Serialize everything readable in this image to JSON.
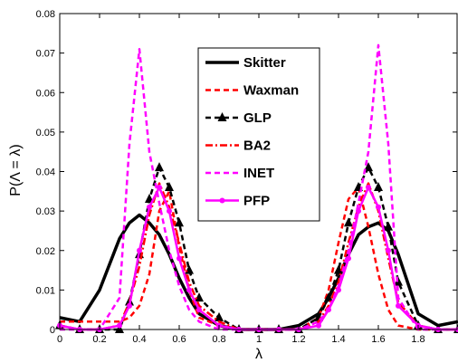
{
  "chart_data": {
    "type": "line",
    "xlabel": "λ",
    "ylabel": "P(Λ = λ)",
    "xlim": [
      0,
      2
    ],
    "ylim": [
      0,
      0.08
    ],
    "xticks": [
      "0",
      "0.2",
      "0.4",
      "0.6",
      "0.8",
      "1",
      "1.2",
      "1.4",
      "1.6",
      "1.8"
    ],
    "yticks": [
      "0",
      "0.01",
      "0.02",
      "0.03",
      "0.04",
      "0.05",
      "0.06",
      "0.07",
      "0.08"
    ],
    "legend_position": "top-center",
    "grid": false,
    "x": [
      0.0,
      0.1,
      0.2,
      0.3,
      0.35,
      0.4,
      0.45,
      0.5,
      0.55,
      0.6,
      0.65,
      0.7,
      0.8,
      0.9,
      1.0,
      1.1,
      1.2,
      1.3,
      1.35,
      1.4,
      1.45,
      1.5,
      1.55,
      1.6,
      1.65,
      1.7,
      1.8,
      1.9,
      2.0
    ],
    "series": [
      {
        "name": "Skitter",
        "color": "#000000",
        "style": "solid-thick",
        "marker": "none",
        "values": [
          0.003,
          0.002,
          0.01,
          0.023,
          0.027,
          0.029,
          0.027,
          0.024,
          0.019,
          0.013,
          0.008,
          0.004,
          0.001,
          0.0,
          0.0,
          0.0,
          0.001,
          0.004,
          0.008,
          0.013,
          0.019,
          0.024,
          0.026,
          0.027,
          0.025,
          0.019,
          0.004,
          0.001,
          0.002
        ]
      },
      {
        "name": "Waxman",
        "color": "#ff0000",
        "style": "dashed",
        "marker": "none",
        "values": [
          0.002,
          0.002,
          0.002,
          0.002,
          0.003,
          0.006,
          0.014,
          0.03,
          0.035,
          0.021,
          0.01,
          0.003,
          0.001,
          0.0,
          0.0,
          0.0,
          0.0,
          0.003,
          0.01,
          0.022,
          0.033,
          0.036,
          0.026,
          0.014,
          0.005,
          0.001,
          0.0,
          0.0,
          0.0
        ]
      },
      {
        "name": "GLP",
        "color": "#000000",
        "style": "dashed",
        "marker": "triangle",
        "values": [
          0.001,
          0.0,
          0.0,
          0.0,
          0.007,
          0.019,
          0.033,
          0.041,
          0.036,
          0.027,
          0.015,
          0.008,
          0.003,
          0.0,
          0.0,
          0.0,
          0.0,
          0.003,
          0.008,
          0.015,
          0.027,
          0.036,
          0.041,
          0.036,
          0.026,
          0.012,
          0.001,
          0.0,
          0.0
        ]
      },
      {
        "name": "BA2",
        "color": "#ff0000",
        "style": "dashdot",
        "marker": "none",
        "values": [
          0.001,
          0.0,
          0.0,
          0.001,
          0.007,
          0.016,
          0.029,
          0.037,
          0.031,
          0.022,
          0.012,
          0.006,
          0.002,
          0.0,
          0.0,
          0.0,
          0.0,
          0.002,
          0.006,
          0.012,
          0.022,
          0.031,
          0.037,
          0.03,
          0.018,
          0.007,
          0.001,
          0.0,
          0.0
        ]
      },
      {
        "name": "INET",
        "color": "#ff00ff",
        "style": "dashed",
        "marker": "none",
        "values": [
          0.0,
          0.0,
          0.0,
          0.008,
          0.047,
          0.071,
          0.045,
          0.032,
          0.02,
          0.011,
          0.005,
          0.002,
          0.0,
          0.0,
          0.0,
          0.0,
          0.0,
          0.002,
          0.005,
          0.011,
          0.02,
          0.032,
          0.045,
          0.072,
          0.047,
          0.008,
          0.0,
          0.0,
          0.0
        ]
      },
      {
        "name": "PFP",
        "color": "#ff00ff",
        "style": "solid",
        "marker": "circle",
        "values": [
          0.001,
          0.0,
          0.0,
          0.001,
          0.006,
          0.02,
          0.031,
          0.036,
          0.03,
          0.018,
          0.01,
          0.005,
          0.001,
          0.0,
          0.0,
          0.0,
          0.0,
          0.001,
          0.005,
          0.01,
          0.018,
          0.03,
          0.036,
          0.031,
          0.02,
          0.006,
          0.001,
          0.0,
          0.0
        ]
      }
    ]
  }
}
